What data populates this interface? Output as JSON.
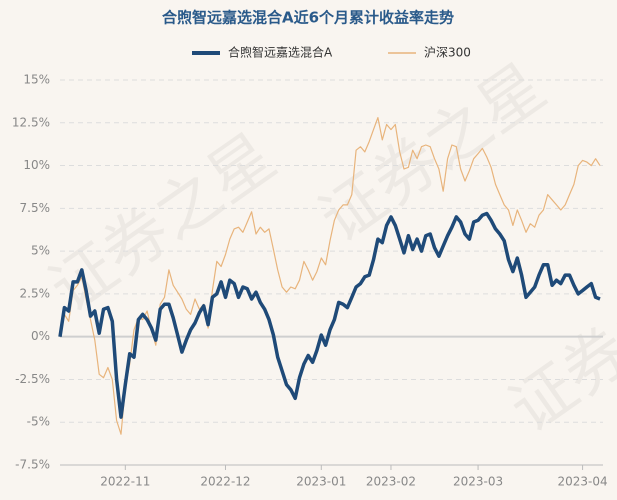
{
  "chart_data": {
    "type": "line",
    "title": "合煦智远嘉选混合A近6个月累计收益率走势",
    "watermark": "证券之星",
    "legend": "top",
    "grid": true,
    "categories": [
      null,
      null,
      null,
      null,
      null,
      null,
      null,
      null,
      null,
      null,
      null,
      null,
      null,
      null,
      null,
      "2022-11",
      null,
      null,
      null,
      null,
      null,
      null,
      null,
      null,
      null,
      null,
      null,
      null,
      null,
      null,
      null,
      null,
      null,
      null,
      null,
      null,
      null,
      null,
      "2022-12",
      null,
      null,
      null,
      null,
      null,
      null,
      null,
      null,
      null,
      null,
      null,
      null,
      null,
      null,
      null,
      null,
      null,
      null,
      null,
      null,
      null,
      "2023-01",
      null,
      null,
      null,
      null,
      null,
      null,
      null,
      null,
      null,
      null,
      null,
      null,
      null,
      null,
      null,
      "2023-02",
      null,
      null,
      null,
      null,
      null,
      null,
      null,
      null,
      null,
      null,
      null,
      null,
      null,
      null,
      null,
      null,
      null,
      null,
      null,
      "2023-03",
      null,
      null,
      null,
      null,
      null,
      null,
      null,
      null,
      null,
      null,
      null,
      null,
      null,
      null,
      null,
      null,
      null,
      null,
      null,
      null,
      null,
      null,
      null,
      "2023-04",
      null,
      null,
      null,
      null
    ],
    "ylim": [
      -7.5,
      15
    ],
    "yticks": [
      {
        "value": -7.5,
        "label": "-7.5%"
      },
      {
        "value": -5,
        "label": "-5%"
      },
      {
        "value": -2.5,
        "label": "-2.5%"
      },
      {
        "value": 0,
        "label": "0%"
      },
      {
        "value": 2.5,
        "label": "2.5%"
      },
      {
        "value": 5,
        "label": "5%"
      },
      {
        "value": 7.5,
        "label": "7.5%"
      },
      {
        "value": 10,
        "label": "10%"
      },
      {
        "value": 12.5,
        "label": "12.5%"
      },
      {
        "value": 15,
        "label": "15%"
      }
    ],
    "series": [
      {
        "name": "合煦智远嘉选混合A",
        "color": "#1f4a78",
        "values": [
          0,
          1.7,
          1.5,
          3.2,
          3.2,
          3.9,
          2.7,
          1.2,
          1.5,
          0.2,
          1.6,
          1.7,
          0.9,
          -2.5,
          -4.7,
          -2.8,
          -1.0,
          -1.2,
          1.0,
          1.3,
          1.0,
          0.5,
          -0.2,
          1.6,
          1.9,
          1.9,
          1.1,
          0.1,
          -0.9,
          -0.2,
          0.4,
          0.8,
          1.4,
          1.8,
          0.7,
          2.3,
          2.5,
          3.2,
          2.3,
          3.3,
          3.1,
          2.3,
          2.9,
          2.8,
          2.2,
          2.6,
          2.0,
          1.6,
          1.0,
          0.1,
          -1.2,
          -2.0,
          -2.8,
          -3.1,
          -3.6,
          -2.4,
          -1.6,
          -1.1,
          -1.5,
          -0.8,
          0.1,
          -0.5,
          0.4,
          1.0,
          2.0,
          1.9,
          1.7,
          2.3,
          2.9,
          3.1,
          3.5,
          3.6,
          4.5,
          5.7,
          5.5,
          6.5,
          7.0,
          6.5,
          5.7,
          4.9,
          5.9,
          5.1,
          5.7,
          5.0,
          5.9,
          6.0,
          5.2,
          4.7,
          5.3,
          5.9,
          6.4,
          7.0,
          6.7,
          6.0,
          5.7,
          6.7,
          6.8,
          7.1,
          7.2,
          6.8,
          6.3,
          6.0,
          5.6,
          4.5,
          3.8,
          4.6,
          3.6,
          2.3,
          2.6,
          2.9,
          3.6,
          4.2,
          4.2,
          3.0,
          3.3,
          3.1,
          3.6,
          3.6,
          3.0,
          2.5,
          2.7,
          2.9,
          3.1,
          2.3,
          2.2
        ]
      },
      {
        "name": "沪深300",
        "color": "#e8b47c",
        "values": [
          0,
          1.3,
          0.9,
          2.7,
          3.0,
          3.5,
          2.2,
          1.0,
          -0.2,
          -2.2,
          -2.4,
          -1.8,
          -2.5,
          -4.9,
          -5.7,
          -3.0,
          -1.6,
          0.4,
          1.1,
          1.0,
          1.5,
          0.4,
          -0.5,
          1.9,
          2.3,
          3.9,
          3.0,
          2.6,
          2.2,
          1.6,
          1.3,
          2.2,
          1.6,
          1.9,
          0.5,
          2.7,
          4.4,
          4.1,
          4.8,
          5.7,
          6.3,
          6.4,
          6.1,
          6.7,
          7.3,
          6.0,
          6.4,
          6.1,
          6.3,
          5.1,
          3.9,
          2.9,
          2.6,
          2.9,
          2.8,
          3.3,
          4.4,
          3.9,
          3.3,
          3.8,
          4.6,
          4.2,
          5.6,
          6.8,
          7.4,
          7.7,
          7.7,
          8.3,
          10.9,
          11.1,
          10.8,
          11.4,
          12.1,
          12.8,
          11.5,
          12.4,
          12.1,
          12.4,
          10.8,
          9.8,
          9.9,
          10.9,
          10.4,
          11.1,
          11.2,
          11.1,
          10.4,
          9.8,
          8.5,
          10.4,
          11.2,
          11.1,
          9.8,
          9.1,
          9.7,
          10.4,
          10.7,
          11.0,
          10.5,
          9.9,
          8.9,
          8.3,
          7.7,
          7.4,
          6.5,
          7.4,
          6.8,
          6.1,
          6.6,
          6.4,
          7.1,
          7.4,
          8.3,
          8.0,
          7.7,
          7.4,
          7.7,
          8.3,
          8.9,
          10.0,
          10.3,
          10.2,
          10.0,
          10.4,
          10.0
        ]
      }
    ]
  }
}
